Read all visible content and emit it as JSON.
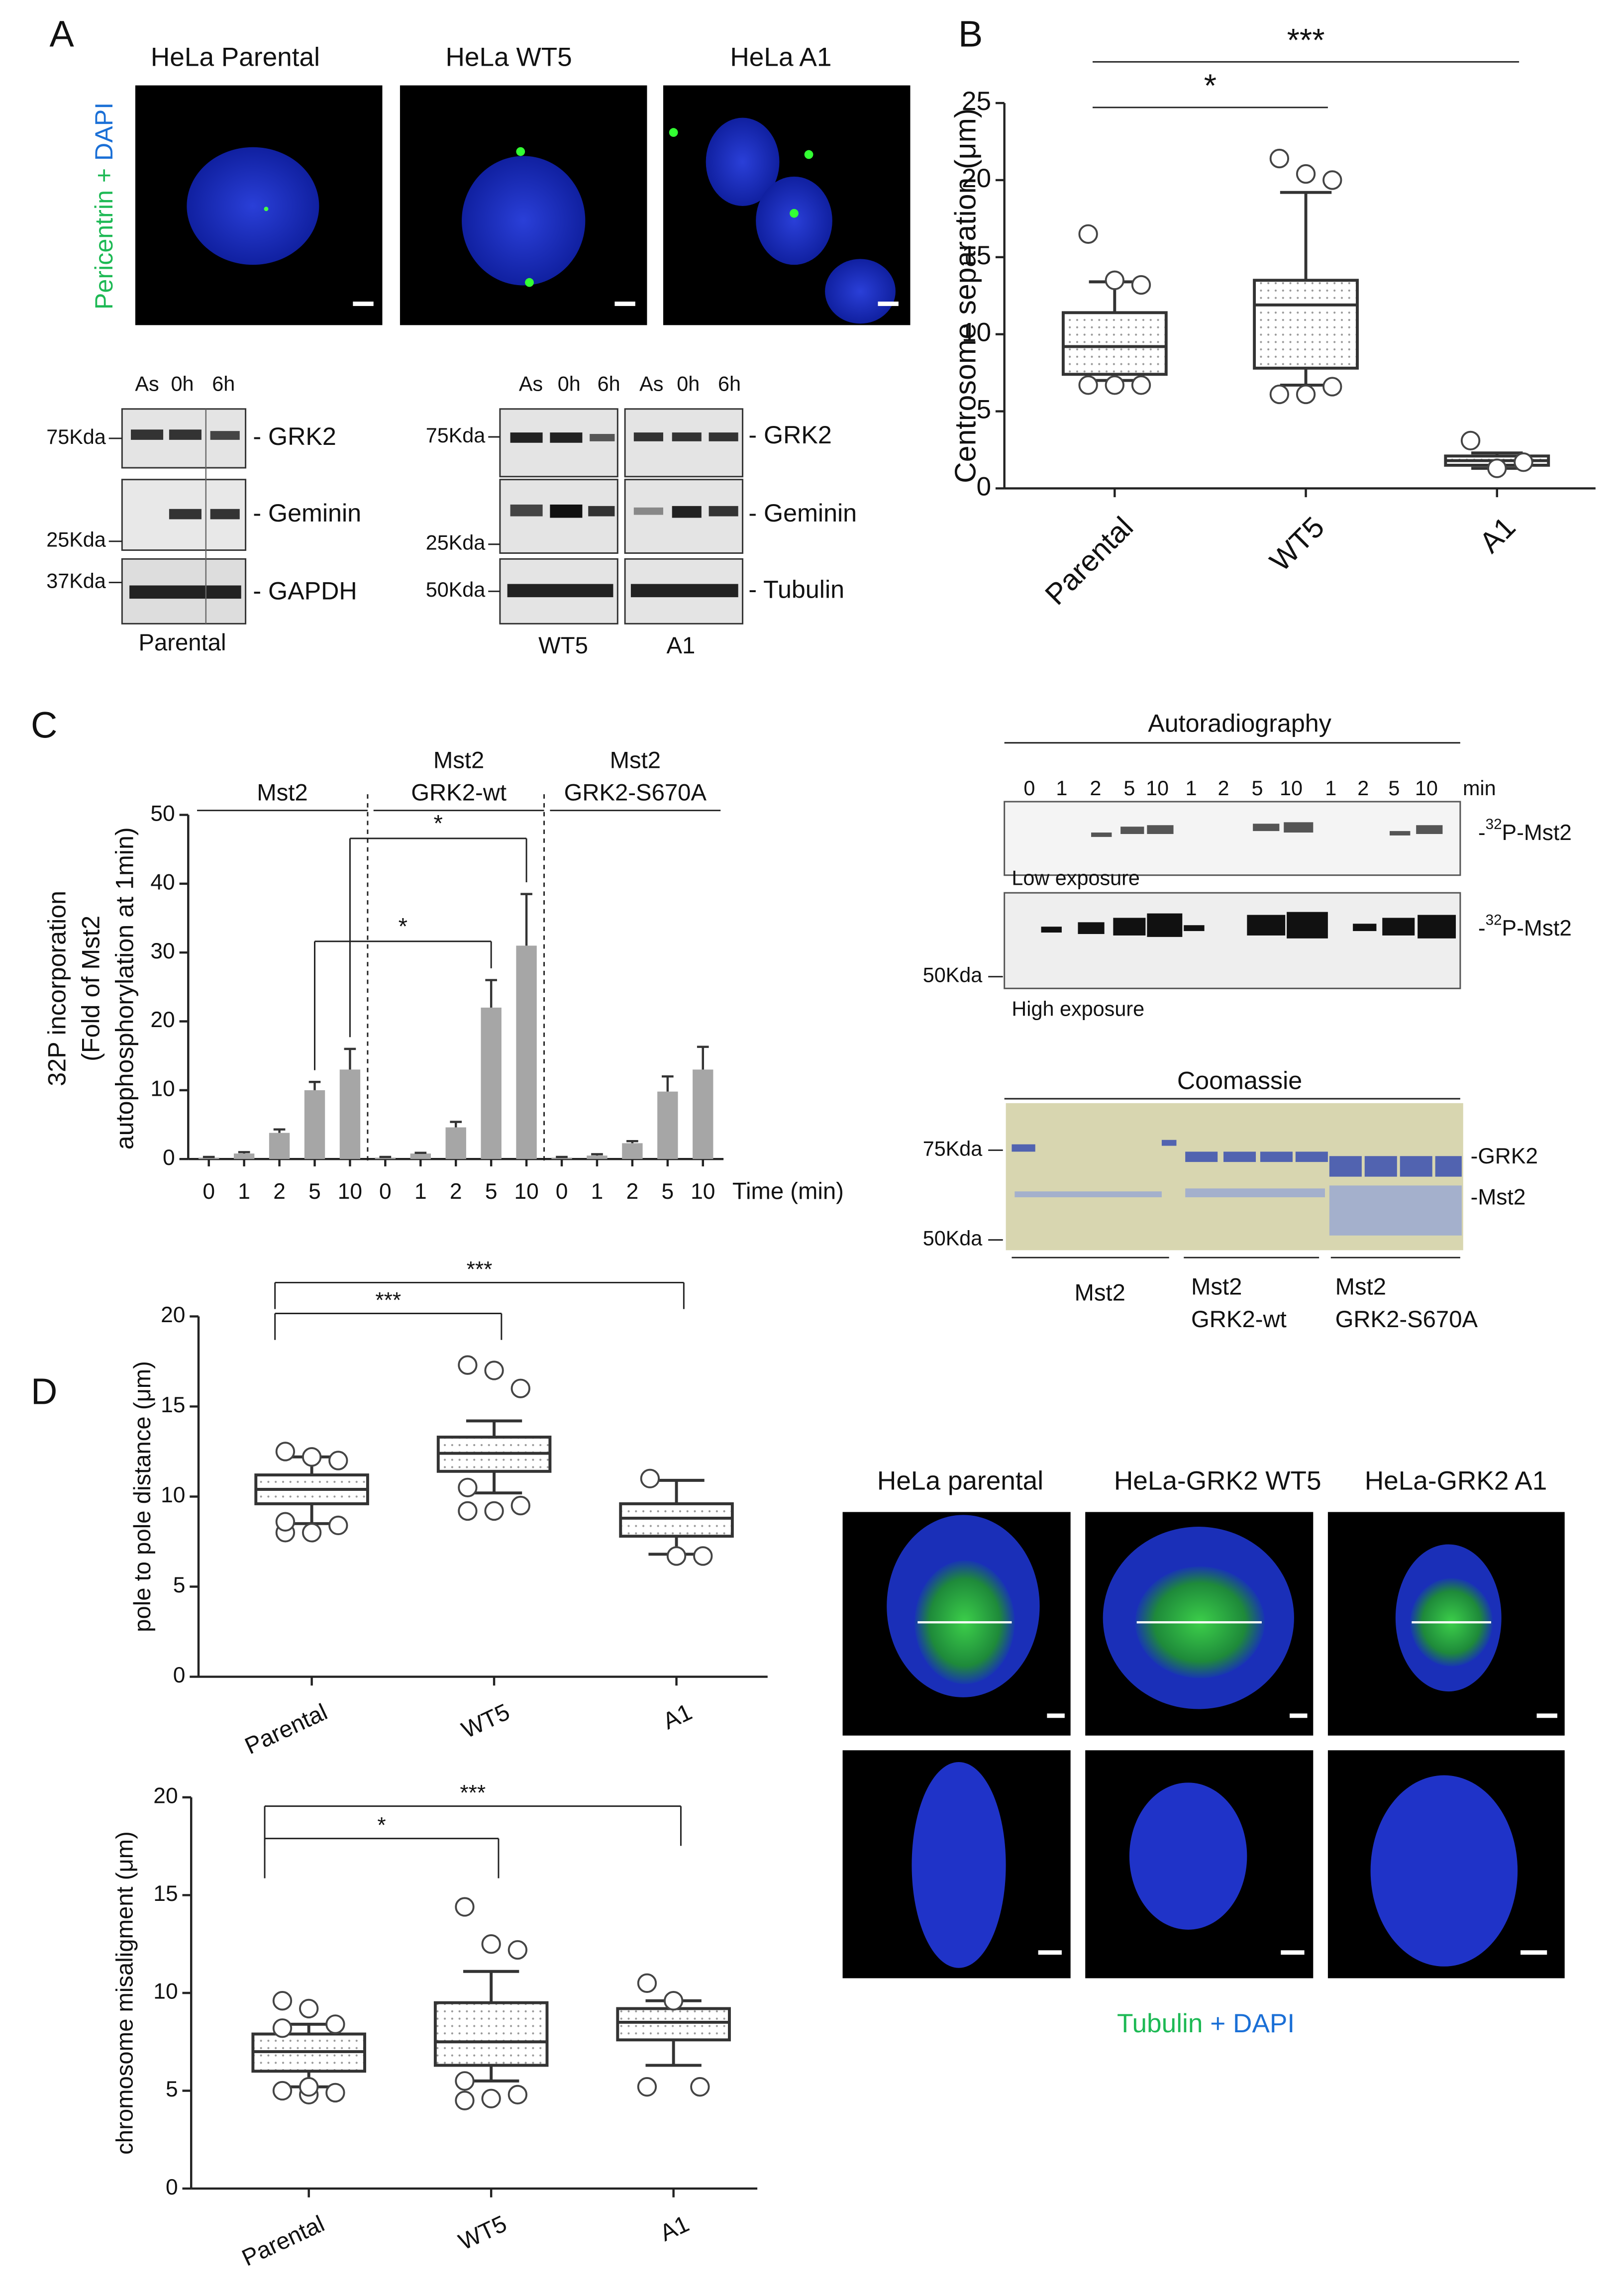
{
  "panel_labels": [
    "A",
    "B",
    "C",
    "D"
  ],
  "panel_a": {
    "cell_lines": [
      "HeLa Parental",
      "HeLa WT5",
      "HeLa A1"
    ],
    "stain": [
      "Pericentrin",
      "+",
      "DAPI"
    ],
    "blot_left": {
      "lanes": [
        "As",
        "0h",
        "6h"
      ],
      "markers": [
        "75Kda",
        "25Kda",
        "37Kda"
      ],
      "proteins": [
        "- GRK2",
        "- Geminin",
        "- GAPDH"
      ],
      "label": "Parental"
    },
    "blot_right": {
      "lanes": [
        "As",
        "0h",
        "6h",
        "As",
        "0h",
        "6h"
      ],
      "markers": [
        "75Kda",
        "25Kda",
        "50Kda"
      ],
      "proteins": [
        "- GRK2",
        "- Geminin",
        "- Tubulin"
      ],
      "labels": [
        "WT5",
        "A1"
      ]
    }
  },
  "panel_c_gels": {
    "autoradiography": {
      "title": "Autoradiography",
      "lanes": [
        "0",
        "1",
        "2",
        "5",
        "10",
        "1",
        "2",
        "5",
        "10",
        "1",
        "2",
        "5",
        "10"
      ],
      "unit": "min",
      "band": [
        "-",
        "32",
        "P-Mst2"
      ],
      "exposures": [
        "Low exposure",
        "High exposure"
      ],
      "marker": "50Kda"
    },
    "coomassie": {
      "title": "Coomassie",
      "markers": [
        "75Kda",
        "50Kda"
      ],
      "bands": [
        "-GRK2",
        "-Mst2"
      ],
      "groups": [
        [
          "Mst2"
        ],
        [
          "Mst2",
          "GRK2-wt"
        ],
        [
          "Mst2",
          "GRK2-S670A"
        ]
      ]
    }
  },
  "panel_d_images": {
    "cell_lines": [
      "HeLa parental",
      "HeLa-GRK2 WT5",
      "HeLa-GRK2 A1"
    ],
    "stain": [
      "Tubulin",
      "+",
      "DAPI"
    ]
  },
  "chart_data": [
    {
      "type": "box",
      "ylabel": "Centrosome separation (μm)",
      "categories": [
        "Parental",
        "WT5",
        "A1"
      ],
      "ylim": [
        0,
        25
      ],
      "yticks": [
        0,
        5,
        10,
        15,
        20,
        25
      ],
      "boxes": [
        {
          "whislo": 7.0,
          "q1": 7.4,
          "med": 9.2,
          "q3": 11.4,
          "whishi": 13.4,
          "fliers": [
            16.5,
            13.5,
            13.2,
            6.7,
            6.7,
            6.7
          ]
        },
        {
          "whislo": 6.7,
          "q1": 7.8,
          "med": 11.9,
          "q3": 13.5,
          "whishi": 19.2,
          "fliers": [
            21.4,
            20.4,
            20.0,
            6.1,
            6.1,
            6.6
          ]
        },
        {
          "whislo": 1.3,
          "q1": 1.5,
          "med": 1.8,
          "q3": 2.1,
          "whishi": 2.3,
          "fliers": [
            3.1,
            1.3,
            1.7
          ]
        }
      ],
      "significance": [
        {
          "label": "*",
          "from": 0,
          "to": 1
        },
        {
          "label": "***",
          "from": 0,
          "to": 2
        }
      ]
    },
    {
      "type": "bar",
      "ylabel": [
        "32P incorporation",
        "(Fold of Mst2",
        "autophosphorylation at 1min)"
      ],
      "xlabel": "Time (min)",
      "groups": [
        [
          "Mst2"
        ],
        [
          "Mst2",
          "GRK2-wt"
        ],
        [
          "Mst2",
          "GRK2-S670A"
        ]
      ],
      "categories": [
        "0",
        "1",
        "2",
        "5",
        "10",
        "0",
        "1",
        "2",
        "5",
        "10",
        "0",
        "1",
        "2",
        "5",
        "10"
      ],
      "values": [
        0.2,
        0.8,
        3.8,
        10,
        13,
        0.2,
        0.8,
        4.6,
        22,
        31,
        0.2,
        0.5,
        2.3,
        9.8,
        13
      ],
      "errors": [
        0.1,
        0.2,
        0.5,
        1.2,
        3.0,
        0.1,
        0.1,
        0.8,
        4.0,
        7.5,
        0.1,
        0.2,
        0.3,
        2.2,
        3.3
      ],
      "color": "#a6a6a6",
      "ylim": [
        0,
        50
      ],
      "yticks": [
        0,
        10,
        20,
        30,
        40,
        50
      ],
      "significance": [
        {
          "label": "*",
          "from": 3,
          "to": 8
        },
        {
          "label": "*",
          "from": 4,
          "to": 9
        }
      ]
    },
    {
      "type": "box",
      "ylabel": "pole to pole distance (μm)",
      "categories": [
        "Parental",
        "WT5",
        "A1"
      ],
      "ylim": [
        0,
        20
      ],
      "yticks": [
        0,
        5,
        10,
        15,
        20
      ],
      "boxes": [
        {
          "whislo": 8.5,
          "q1": 9.6,
          "med": 10.4,
          "q3": 11.2,
          "whishi": 12.2,
          "fliers": [
            12.5,
            12.2,
            12.0,
            8.0,
            8.0,
            8.4,
            8.6
          ]
        },
        {
          "whislo": 10.2,
          "q1": 11.4,
          "med": 12.4,
          "q3": 13.3,
          "whishi": 14.2,
          "fliers": [
            17.3,
            17.0,
            16.0,
            9.2,
            9.2,
            9.5,
            10.5
          ]
        },
        {
          "whislo": 6.8,
          "q1": 7.8,
          "med": 8.8,
          "q3": 9.6,
          "whishi": 10.9,
          "fliers": [
            11.0,
            6.7,
            6.7
          ]
        }
      ],
      "significance": [
        {
          "label": "***",
          "from": 0,
          "to": 1
        },
        {
          "label": "***",
          "from": 0,
          "to": 2
        }
      ]
    },
    {
      "type": "box",
      "ylabel": "chromosome misaligment (μm)",
      "categories": [
        "Parental",
        "WT5",
        "A1"
      ],
      "ylim": [
        0,
        20
      ],
      "yticks": [
        0,
        5,
        10,
        15,
        20
      ],
      "boxes": [
        {
          "whislo": 5.2,
          "q1": 6.0,
          "med": 7.0,
          "q3": 7.9,
          "whishi": 8.4,
          "fliers": [
            9.6,
            9.2,
            8.4,
            8.2,
            4.8,
            4.9,
            5.0,
            5.2
          ]
        },
        {
          "whislo": 5.5,
          "q1": 6.3,
          "med": 7.5,
          "q3": 9.5,
          "whishi": 11.1,
          "fliers": [
            14.4,
            12.5,
            12.2,
            4.5,
            4.6,
            4.8,
            5.5
          ]
        },
        {
          "whislo": 6.3,
          "q1": 7.6,
          "med": 8.5,
          "q3": 9.2,
          "whishi": 9.6,
          "fliers": [
            10.5,
            9.6,
            5.2,
            5.2
          ]
        }
      ],
      "significance": [
        {
          "label": "*",
          "from": 0,
          "to": 1
        },
        {
          "label": "***",
          "from": 0,
          "to": 2
        }
      ]
    }
  ]
}
